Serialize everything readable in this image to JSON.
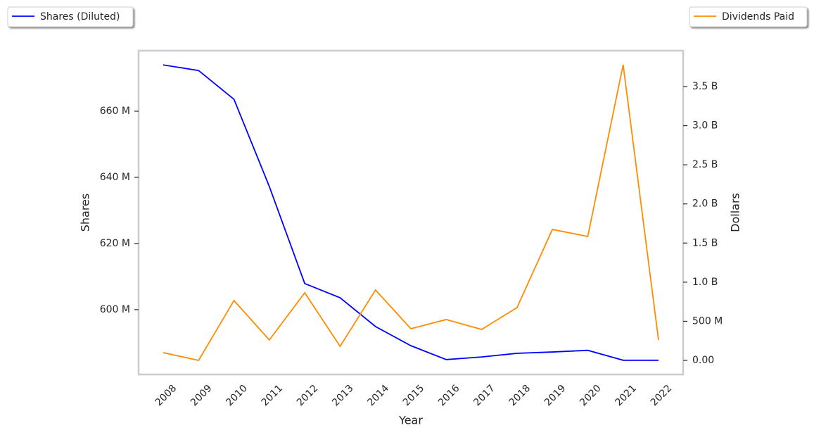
{
  "chart_data": {
    "type": "line",
    "x_label": "Year",
    "y_label": "Shares",
    "y2_label": "Dollars",
    "categories": [
      "2008",
      "2009",
      "2010",
      "2011",
      "2012",
      "2013",
      "2014",
      "2015",
      "2016",
      "2017",
      "2018",
      "2019",
      "2020",
      "2021",
      "2022"
    ],
    "series": [
      {
        "name": "Shares (Diluted)",
        "color": "#0000ff",
        "axis": "y",
        "values": [
          674000000,
          672300000,
          663600000,
          637200000,
          607900000,
          603600000,
          594900000,
          589100000,
          584900000,
          585700000,
          586800000,
          587200000,
          587700000,
          584700000,
          584700000
        ]
      },
      {
        "name": "Dividends Paid",
        "color": "#ff8c00",
        "axis": "y2",
        "values": [
          99000000,
          0,
          765000000,
          261000000,
          864000000,
          180000000,
          900000000,
          405000000,
          522000000,
          396000000,
          675000000,
          1674000000,
          1584000000,
          3779000000,
          261000000
        ]
      }
    ],
    "ylim": [
      580400000,
      678300000
    ],
    "yticks": [
      {
        "value": 600000000,
        "label": "600 M"
      },
      {
        "value": 620000000,
        "label": "620 M"
      },
      {
        "value": 640000000,
        "label": "640 M"
      },
      {
        "value": 660000000,
        "label": "660 M"
      }
    ],
    "y2lim": [
      -180000000,
      3959000000
    ],
    "y2ticks": [
      {
        "value": 0,
        "label": "0.00"
      },
      {
        "value": 500000000,
        "label": "500 M"
      },
      {
        "value": 1000000000,
        "label": "1.0 B"
      },
      {
        "value": 1500000000,
        "label": "1.5 B"
      },
      {
        "value": 2000000000,
        "label": "2.0 B"
      },
      {
        "value": 2500000000,
        "label": "2.5 B"
      },
      {
        "value": 3000000000,
        "label": "3.0 B"
      },
      {
        "value": 3500000000,
        "label": "3.5 B"
      }
    ],
    "grid": false
  }
}
